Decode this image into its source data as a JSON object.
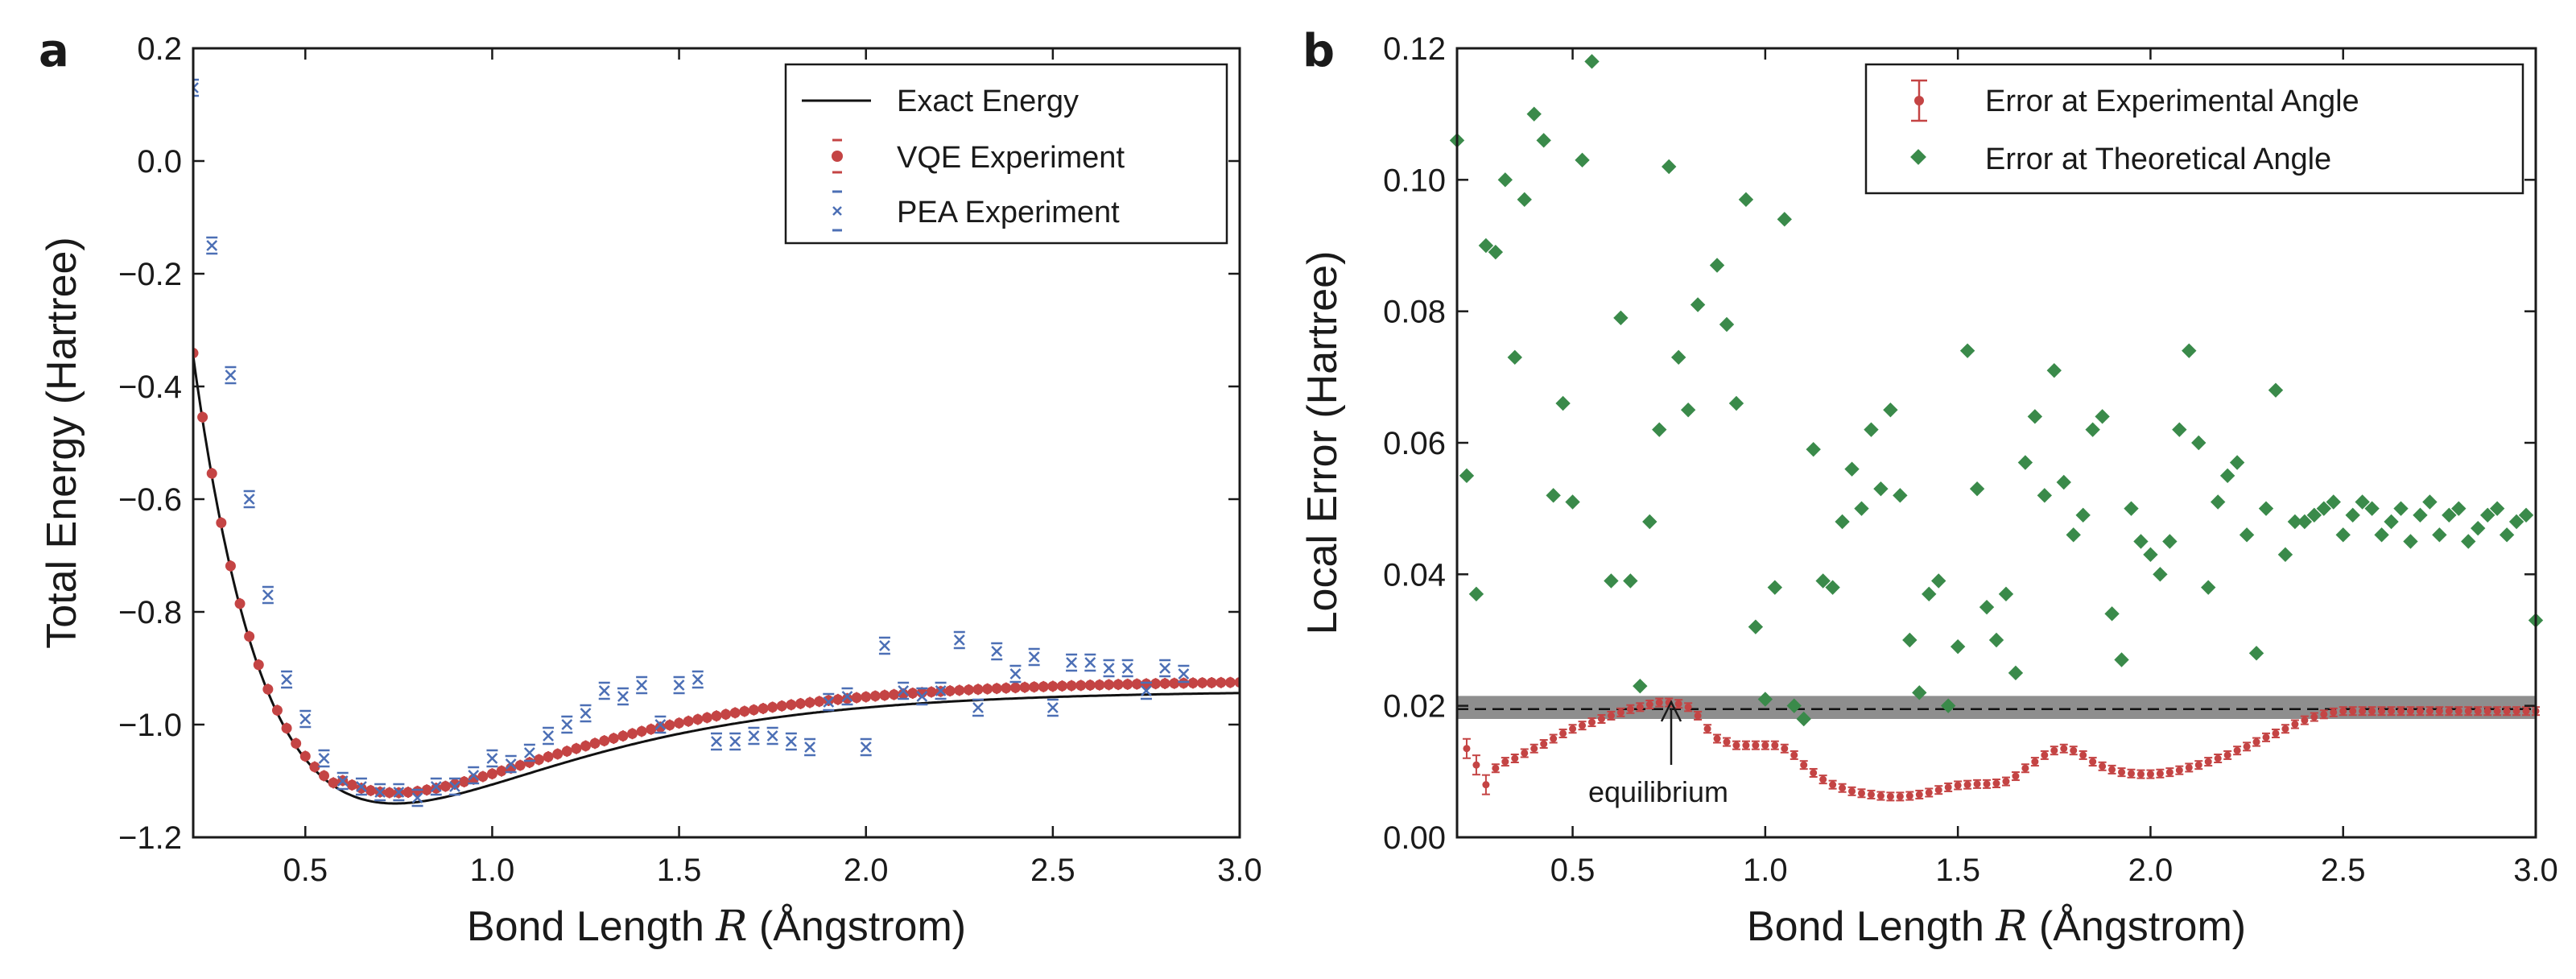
{
  "colors": {
    "exact": "#111111",
    "vqe": "#c44444",
    "pea": "#4c6fb5",
    "theory": "#3a8a4a",
    "band": "#7a7a7a"
  },
  "chart_data": [
    {
      "type": "line+scatter",
      "panel_label": "a",
      "title": "",
      "xlabel": "Bond Length R (Ångstrom)",
      "ylabel": "Total Energy (Hartree)",
      "xlim": [
        0.2,
        3.0
      ],
      "ylim": [
        -1.2,
        0.2
      ],
      "xticks": [
        "0.5",
        "1.0",
        "1.5",
        "2.0",
        "2.5",
        "3.0"
      ],
      "xtick_values": [
        0.5,
        1.0,
        1.5,
        2.0,
        2.5,
        3.0
      ],
      "yticks": [
        "−1.2",
        "−1.0",
        "−0.8",
        "−0.6",
        "−0.4",
        "−0.2",
        "0.0",
        "0.2"
      ],
      "ytick_values": [
        -1.2,
        -1.0,
        -0.8,
        -0.6,
        -0.4,
        -0.2,
        0.0,
        0.2
      ],
      "legend": [
        "Exact Energy",
        "VQE Experiment",
        "PEA Experiment"
      ],
      "legend_position": "top-right",
      "series": [
        {
          "name": "Exact Energy",
          "kind": "line",
          "note": "H2 potential energy curve (computed smoothly from model)"
        },
        {
          "name": "VQE Experiment",
          "kind": "points",
          "x_start": 0.2,
          "x_end": 3.0,
          "x_step": 0.025,
          "offset": 0.019
        },
        {
          "name": "PEA Experiment",
          "kind": "points",
          "x": [
            0.2,
            0.25,
            0.3,
            0.35,
            0.4,
            0.45,
            0.5,
            0.55,
            0.6,
            0.65,
            0.7,
            0.75,
            0.8,
            0.85,
            0.9,
            0.95,
            1.0,
            1.05,
            1.1,
            1.15,
            1.2,
            1.25,
            1.3,
            1.35,
            1.4,
            1.45,
            1.5,
            1.55,
            1.6,
            1.65,
            1.7,
            1.75,
            1.8,
            1.85,
            1.9,
            1.95,
            2.0,
            2.05,
            2.1,
            2.15,
            2.2,
            2.25,
            2.3,
            2.35,
            2.4,
            2.45,
            2.5,
            2.55,
            2.6,
            2.65,
            2.7,
            2.75,
            2.8,
            2.85
          ],
          "y": [
            0.13,
            -0.15,
            -0.38,
            -0.6,
            -0.77,
            -0.92,
            -0.99,
            -1.06,
            -1.1,
            -1.11,
            -1.12,
            -1.12,
            -1.13,
            -1.11,
            -1.11,
            -1.09,
            -1.06,
            -1.07,
            -1.05,
            -1.02,
            -1.0,
            -0.98,
            -0.94,
            -0.95,
            -0.93,
            -1.0,
            -0.93,
            -0.92,
            -1.03,
            -1.03,
            -1.02,
            -1.02,
            -1.03,
            -1.04,
            -0.96,
            -0.95,
            -1.04,
            -0.86,
            -0.94,
            -0.95,
            -0.94,
            -0.85,
            -0.97,
            -0.87,
            -0.91,
            -0.88,
            -0.97,
            -0.89,
            -0.89,
            -0.9,
            -0.9,
            -0.94,
            -0.9,
            -0.91
          ]
        }
      ]
    },
    {
      "type": "scatter",
      "panel_label": "b",
      "title": "",
      "xlabel": "Bond Length R (Ångstrom)",
      "ylabel": "Local Error (Hartree)",
      "xlim": [
        0.2,
        3.0
      ],
      "ylim": [
        0.0,
        0.12
      ],
      "xticks": [
        "0.5",
        "1.0",
        "1.5",
        "2.0",
        "2.5",
        "3.0"
      ],
      "xtick_values": [
        0.5,
        1.0,
        1.5,
        2.0,
        2.5,
        3.0
      ],
      "yticks": [
        "0.00",
        "0.02",
        "0.04",
        "0.06",
        "0.08",
        "0.10",
        "0.12"
      ],
      "ytick_values": [
        0.0,
        0.02,
        0.04,
        0.06,
        0.08,
        0.1,
        0.12
      ],
      "legend": [
        "Error at Experimental Angle",
        "Error at Theoretical Angle"
      ],
      "legend_position": "top-right",
      "annotation": {
        "text": "equilibrium",
        "x": 0.75,
        "y": 0.0205
      },
      "band": {
        "y_low": 0.018,
        "y_high": 0.0215,
        "line": 0.0195
      },
      "series": [
        {
          "name": "Error at Experimental Angle",
          "x": [
            0.225,
            0.25,
            0.275,
            0.3,
            0.325,
            0.35,
            0.375,
            0.4,
            0.425,
            0.45,
            0.475,
            0.5,
            0.525,
            0.55,
            0.575,
            0.6,
            0.625,
            0.65,
            0.675,
            0.7,
            0.725,
            0.75,
            0.775,
            0.8,
            0.825,
            0.85,
            0.875,
            0.9,
            0.925,
            0.95,
            0.975,
            1.0,
            1.025,
            1.05,
            1.075,
            1.1,
            1.125,
            1.15,
            1.175,
            1.2,
            1.225,
            1.25,
            1.275,
            1.3,
            1.325,
            1.35,
            1.375,
            1.4,
            1.425,
            1.45,
            1.475,
            1.5,
            1.525,
            1.55,
            1.575,
            1.6,
            1.625,
            1.65,
            1.675,
            1.7,
            1.725,
            1.75,
            1.775,
            1.8,
            1.825,
            1.85,
            1.875,
            1.9,
            1.925,
            1.95,
            1.975,
            2.0,
            2.025,
            2.05,
            2.075,
            2.1,
            2.125,
            2.15,
            2.175,
            2.2,
            2.225,
            2.25,
            2.275,
            2.3,
            2.325,
            2.35,
            2.375,
            2.4,
            2.425,
            2.45,
            2.475,
            2.5,
            2.525,
            2.55,
            2.575,
            2.6,
            2.625,
            2.65,
            2.675,
            2.7,
            2.725,
            2.75,
            2.775,
            2.8,
            2.825,
            2.85,
            2.875,
            2.9,
            2.925,
            2.95,
            2.975,
            3.0
          ],
          "y": [
            0.0135,
            0.011,
            0.008,
            0.0105,
            0.0115,
            0.012,
            0.0128,
            0.0135,
            0.0142,
            0.015,
            0.0158,
            0.0165,
            0.017,
            0.0175,
            0.018,
            0.0185,
            0.019,
            0.0195,
            0.0198,
            0.0202,
            0.0205,
            0.0205,
            0.0203,
            0.0198,
            0.0185,
            0.0165,
            0.015,
            0.0145,
            0.014,
            0.014,
            0.014,
            0.014,
            0.014,
            0.0135,
            0.0125,
            0.011,
            0.0098,
            0.0088,
            0.008,
            0.0075,
            0.007,
            0.0067,
            0.0065,
            0.0063,
            0.0062,
            0.0062,
            0.0063,
            0.0065,
            0.0068,
            0.0072,
            0.0076,
            0.0079,
            0.008,
            0.0081,
            0.0081,
            0.0082,
            0.0085,
            0.0093,
            0.0105,
            0.0115,
            0.0125,
            0.0132,
            0.0135,
            0.0132,
            0.0125,
            0.0115,
            0.0108,
            0.0103,
            0.0099,
            0.0097,
            0.0096,
            0.0096,
            0.0097,
            0.0099,
            0.0102,
            0.0106,
            0.011,
            0.0115,
            0.012,
            0.0125,
            0.0132,
            0.0138,
            0.0145,
            0.0152,
            0.0158,
            0.0165,
            0.0172,
            0.0178,
            0.0183,
            0.0187,
            0.019,
            0.0192,
            0.0192,
            0.0192,
            0.0192,
            0.0192,
            0.0192,
            0.0192,
            0.0192,
            0.0192,
            0.0192,
            0.0192,
            0.0192,
            0.0192,
            0.0192,
            0.0192,
            0.0192,
            0.0192,
            0.0192,
            0.0192,
            0.0192,
            0.0192
          ]
        },
        {
          "name": "Error at Theoretical Angle",
          "x": [
            0.2,
            0.225,
            0.25,
            0.275,
            0.3,
            0.325,
            0.35,
            0.375,
            0.4,
            0.425,
            0.45,
            0.475,
            0.5,
            0.525,
            0.55,
            0.6,
            0.625,
            0.65,
            0.675,
            0.7,
            0.725,
            0.75,
            0.775,
            0.8,
            0.825,
            0.875,
            0.9,
            0.925,
            0.95,
            0.975,
            1.0,
            1.025,
            1.05,
            1.075,
            1.1,
            1.125,
            1.15,
            1.175,
            1.2,
            1.225,
            1.25,
            1.275,
            1.3,
            1.325,
            1.35,
            1.375,
            1.4,
            1.425,
            1.45,
            1.475,
            1.5,
            1.525,
            1.55,
            1.575,
            1.6,
            1.625,
            1.65,
            1.675,
            1.7,
            1.725,
            1.75,
            1.775,
            1.8,
            1.825,
            1.85,
            1.875,
            1.9,
            1.925,
            1.95,
            1.975,
            2.0,
            2.025,
            2.05,
            2.075,
            2.1,
            2.125,
            2.15,
            2.175,
            2.2,
            2.225,
            2.25,
            2.275,
            2.3,
            2.325,
            2.35,
            2.375,
            2.4,
            2.425,
            2.45,
            2.475,
            2.5,
            2.525,
            2.55,
            2.575,
            2.6,
            2.625,
            2.65,
            2.675,
            2.7,
            2.725,
            2.75,
            2.775,
            2.8,
            2.825,
            2.85,
            2.875,
            2.9,
            2.925,
            2.95,
            2.975,
            3.0
          ],
          "y": [
            0.106,
            0.055,
            0.037,
            0.09,
            0.089,
            0.1,
            0.073,
            0.097,
            0.11,
            0.106,
            0.052,
            0.066,
            0.051,
            0.103,
            0.118,
            0.039,
            0.079,
            0.039,
            0.023,
            0.048,
            0.062,
            0.102,
            0.073,
            0.065,
            0.081,
            0.087,
            0.078,
            0.066,
            0.097,
            0.032,
            0.021,
            0.038,
            0.094,
            0.02,
            0.018,
            0.059,
            0.039,
            0.038,
            0.048,
            0.056,
            0.05,
            0.062,
            0.053,
            0.065,
            0.052,
            0.03,
            0.022,
            0.037,
            0.039,
            0.02,
            0.029,
            0.074,
            0.053,
            0.035,
            0.03,
            0.037,
            0.025,
            0.057,
            0.064,
            0.052,
            0.071,
            0.054,
            0.046,
            0.049,
            0.062,
            0.064,
            0.034,
            0.027,
            0.05,
            0.045,
            0.043,
            0.04,
            0.045,
            0.062,
            0.074,
            0.06,
            0.038,
            0.051,
            0.055,
            0.057,
            0.046,
            0.028,
            0.05,
            0.068,
            0.043,
            0.048,
            0.048,
            0.049,
            0.05,
            0.051,
            0.046,
            0.049,
            0.051,
            0.05,
            0.046,
            0.048,
            0.05,
            0.045,
            0.049,
            0.051,
            0.046,
            0.049,
            0.05,
            0.045,
            0.047,
            0.049,
            0.05,
            0.046,
            0.048,
            0.049,
            0.033
          ]
        }
      ]
    }
  ]
}
